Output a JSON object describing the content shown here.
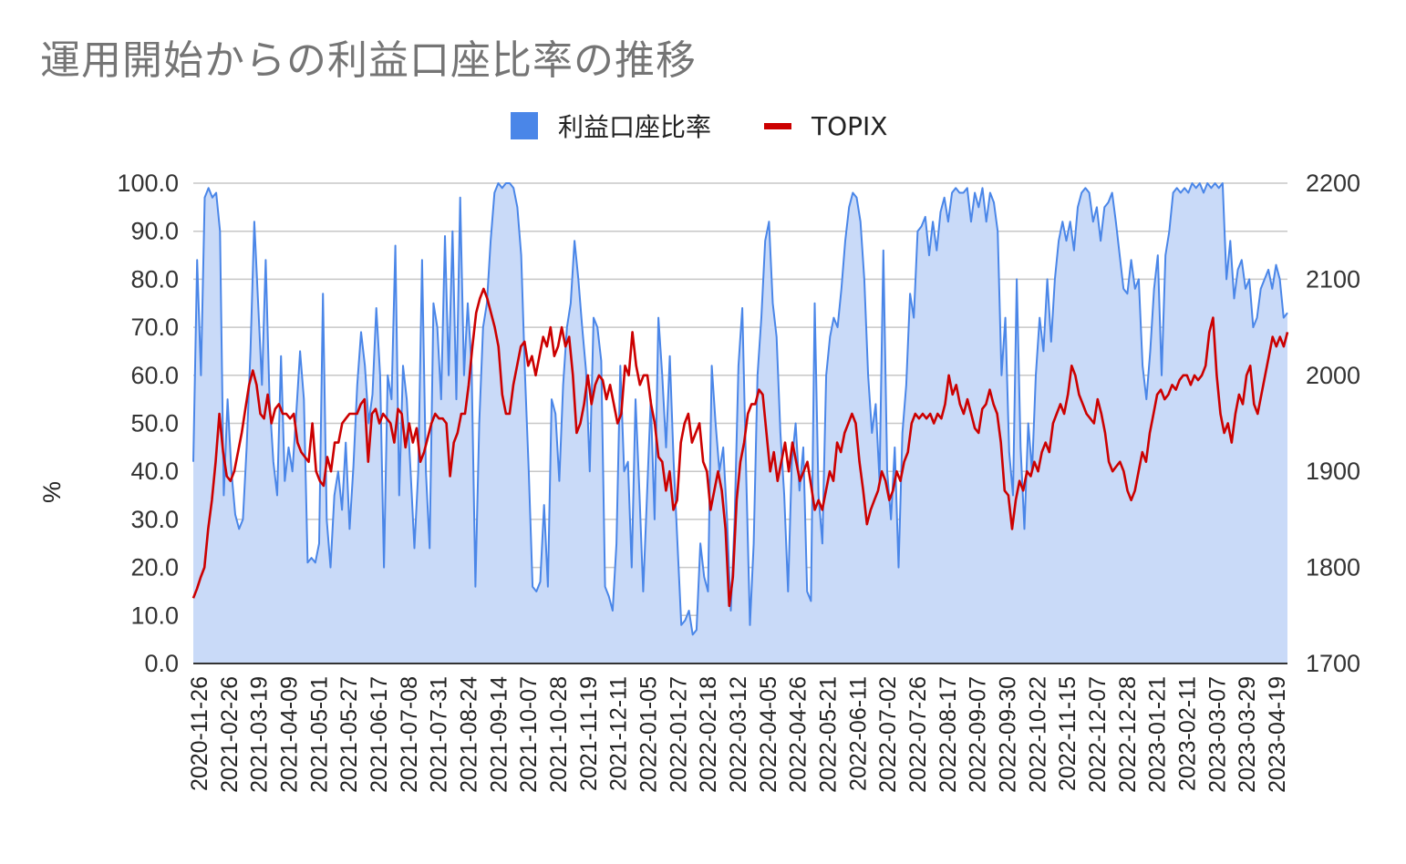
{
  "title": "運用開始からの利益口座比率の推移",
  "legend": {
    "area_label": "利益口座比率",
    "line_label": "TOPIX"
  },
  "colors": {
    "area_fill": "#c9daf8",
    "area_stroke": "#4a86e8",
    "line": "#cc0000",
    "grid": "#c7c7c7",
    "baseline": "#333333"
  },
  "chart_data": {
    "type": "area",
    "title": "運用開始からの利益口座比率の推移",
    "ylabel": "%",
    "ylim": [
      0,
      100
    ],
    "y2lim": [
      1700,
      2200
    ],
    "grid": true,
    "legend_position": "top",
    "y_ticks": [
      "100.0",
      "90.0",
      "80.0",
      "70.0",
      "60.0",
      "50.0",
      "40.0",
      "30.0",
      "20.0",
      "10.0",
      "0.0"
    ],
    "y2_ticks": [
      "2200",
      "2100",
      "2000",
      "1900",
      "1800",
      "1700"
    ],
    "x_ticks": [
      "2020-11-26",
      "2021-02-26",
      "2021-03-19",
      "2021-04-09",
      "2021-05-01",
      "2021-05-27",
      "2021-06-17",
      "2021-07-08",
      "2021-07-31",
      "2021-08-24",
      "2021-09-14",
      "2021-10-07",
      "2021-10-28",
      "2021-11-19",
      "2021-12-11",
      "2022-01-05",
      "2022-01-27",
      "2022-02-18",
      "2022-03-12",
      "2022-04-05",
      "2022-04-26",
      "2022-05-21",
      "2022-06-11",
      "2022-07-02",
      "2022-07-26",
      "2022-08-17",
      "2022-09-07",
      "2022-09-30",
      "2022-10-22",
      "2022-11-15",
      "2022-12-07",
      "2022-12-28",
      "2023-01-21",
      "2023-02-11",
      "2023-03-07",
      "2023-03-29",
      "2023-04-19"
    ],
    "series": [
      {
        "name": "利益口座比率",
        "axis": "left",
        "style": "area",
        "values": [
          42,
          84,
          60,
          97,
          99,
          97,
          98,
          90,
          35,
          55,
          40,
          31,
          28,
          30,
          45,
          65,
          92,
          75,
          58,
          84,
          55,
          42,
          35,
          64,
          38,
          45,
          40,
          52,
          65,
          55,
          21,
          22,
          21,
          25,
          77,
          30,
          20,
          35,
          40,
          32,
          46,
          28,
          41,
          58,
          69,
          62,
          50,
          56,
          74,
          60,
          20,
          60,
          55,
          87,
          35,
          62,
          55,
          40,
          24,
          40,
          84,
          40,
          24,
          75,
          70,
          55,
          89,
          60,
          90,
          55,
          97,
          60,
          75,
          62,
          16,
          50,
          70,
          75,
          88,
          98,
          100,
          99,
          100,
          100,
          99,
          95,
          85,
          60,
          40,
          16,
          15,
          17,
          33,
          16,
          55,
          52,
          38,
          58,
          70,
          75,
          88,
          80,
          70,
          61,
          40,
          72,
          70,
          63,
          16,
          14,
          11,
          25,
          62,
          40,
          42,
          20,
          55,
          36,
          15,
          35,
          55,
          30,
          72,
          60,
          45,
          64,
          42,
          25,
          8,
          9,
          11,
          6,
          7,
          25,
          18,
          15,
          62,
          50,
          40,
          45,
          30,
          11,
          30,
          62,
          74,
          40,
          8,
          25,
          60,
          72,
          88,
          92,
          75,
          68,
          48,
          35,
          15,
          42,
          50,
          36,
          45,
          15,
          13,
          75,
          35,
          25,
          60,
          68,
          72,
          70,
          78,
          88,
          95,
          98,
          97,
          92,
          80,
          60,
          48,
          54,
          38,
          86,
          40,
          30,
          45,
          20,
          48,
          58,
          77,
          72,
          90,
          91,
          93,
          85,
          92,
          86,
          94,
          97,
          92,
          98,
          99,
          98,
          98,
          99,
          92,
          98,
          95,
          99,
          92,
          98,
          96,
          90,
          60,
          72,
          44,
          35,
          80,
          45,
          28,
          50,
          40,
          60,
          72,
          65,
          80,
          67,
          80,
          88,
          92,
          88,
          92,
          86,
          95,
          98,
          99,
          98,
          92,
          95,
          88,
          95,
          96,
          98,
          92,
          85,
          78,
          77,
          84,
          78,
          80,
          62,
          55,
          65,
          78,
          85,
          60,
          85,
          90,
          98,
          99,
          98,
          99,
          98,
          100,
          99,
          100,
          98,
          100,
          99,
          100,
          99,
          100,
          80,
          88,
          76,
          82,
          84,
          78,
          80,
          70,
          72,
          78,
          80,
          82,
          78,
          83,
          80,
          72,
          73
        ]
      },
      {
        "name": "TOPIX",
        "axis": "right",
        "style": "line",
        "values": [
          1768,
          1778,
          1790,
          1800,
          1840,
          1870,
          1910,
          1960,
          1920,
          1895,
          1890,
          1900,
          1920,
          1940,
          1965,
          1990,
          2005,
          1990,
          1960,
          1955,
          1980,
          1950,
          1965,
          1970,
          1960,
          1960,
          1955,
          1960,
          1930,
          1920,
          1915,
          1910,
          1950,
          1900,
          1890,
          1885,
          1915,
          1900,
          1930,
          1930,
          1950,
          1955,
          1960,
          1960,
          1960,
          1970,
          1975,
          1910,
          1960,
          1965,
          1950,
          1960,
          1955,
          1950,
          1930,
          1965,
          1960,
          1925,
          1950,
          1930,
          1945,
          1910,
          1920,
          1935,
          1950,
          1960,
          1955,
          1955,
          1950,
          1895,
          1930,
          1940,
          1960,
          1960,
          1990,
          2030,
          2065,
          2080,
          2090,
          2080,
          2065,
          2050,
          2030,
          1980,
          1960,
          1960,
          1990,
          2010,
          2030,
          2035,
          2010,
          2020,
          2000,
          2020,
          2040,
          2030,
          2050,
          2020,
          2030,
          2050,
          2030,
          2040,
          2000,
          1940,
          1950,
          1970,
          2000,
          1970,
          1990,
          2000,
          1995,
          1975,
          1990,
          1970,
          1950,
          1960,
          2010,
          2000,
          2045,
          2010,
          1990,
          2000,
          2000,
          1970,
          1950,
          1915,
          1910,
          1880,
          1900,
          1860,
          1870,
          1930,
          1950,
          1960,
          1930,
          1940,
          1950,
          1910,
          1900,
          1860,
          1880,
          1900,
          1880,
          1840,
          1760,
          1790,
          1870,
          1910,
          1930,
          1960,
          1970,
          1970,
          1985,
          1980,
          1940,
          1900,
          1920,
          1890,
          1910,
          1930,
          1900,
          1930,
          1910,
          1890,
          1900,
          1910,
          1885,
          1860,
          1870,
          1860,
          1880,
          1900,
          1890,
          1930,
          1920,
          1940,
          1950,
          1960,
          1950,
          1910,
          1880,
          1845,
          1860,
          1870,
          1880,
          1900,
          1890,
          1870,
          1880,
          1900,
          1890,
          1910,
          1920,
          1950,
          1960,
          1955,
          1960,
          1955,
          1960,
          1950,
          1960,
          1955,
          1970,
          2000,
          1980,
          1990,
          1970,
          1960,
          1975,
          1960,
          1945,
          1940,
          1965,
          1970,
          1985,
          1970,
          1960,
          1930,
          1880,
          1875,
          1840,
          1870,
          1890,
          1880,
          1900,
          1895,
          1910,
          1900,
          1920,
          1930,
          1920,
          1950,
          1960,
          1970,
          1960,
          1980,
          2010,
          2000,
          1980,
          1970,
          1960,
          1955,
          1950,
          1975,
          1960,
          1940,
          1910,
          1900,
          1905,
          1910,
          1900,
          1880,
          1870,
          1880,
          1900,
          1920,
          1910,
          1940,
          1960,
          1980,
          1985,
          1975,
          1980,
          1990,
          1985,
          1995,
          2000,
          2000,
          1990,
          2000,
          1995,
          2000,
          2010,
          2045,
          2060,
          2000,
          1960,
          1940,
          1950,
          1930,
          1960,
          1980,
          1970,
          2000,
          2010,
          1970,
          1960,
          1980,
          2000,
          2020,
          2040,
          2030,
          2040,
          2030,
          2045
        ]
      }
    ]
  }
}
